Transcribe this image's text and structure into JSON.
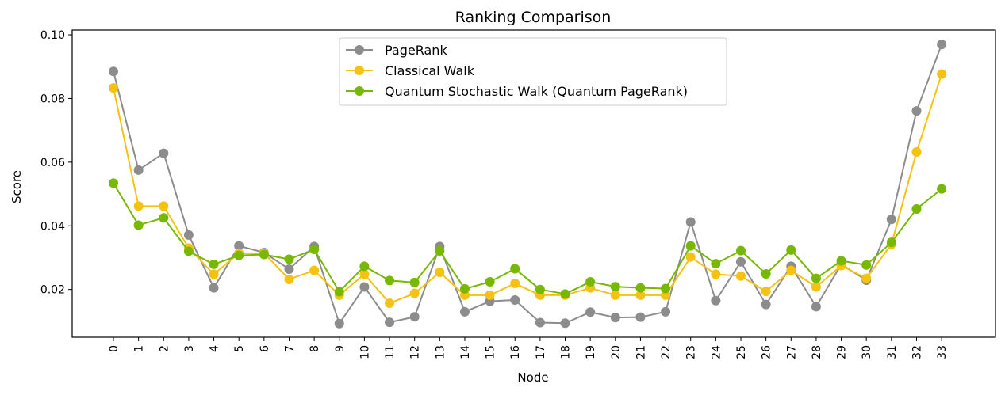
{
  "chart_data": {
    "type": "line",
    "title": "Ranking Comparison",
    "xlabel": "Node",
    "ylabel": "Score",
    "x": [
      0,
      1,
      2,
      3,
      4,
      5,
      6,
      7,
      8,
      9,
      10,
      11,
      12,
      13,
      14,
      15,
      16,
      17,
      18,
      19,
      20,
      21,
      22,
      23,
      24,
      25,
      26,
      27,
      28,
      29,
      30,
      31,
      32,
      33
    ],
    "ylim": [
      0.005,
      0.1015
    ],
    "yticks": [
      0.02,
      0.04,
      0.06,
      0.08,
      0.1
    ],
    "ytick_labels": [
      "0.02",
      "0.04",
      "0.06",
      "0.08",
      "0.10"
    ],
    "grid": false,
    "legend_position": "top-center",
    "series": [
      {
        "name": "PageRank",
        "color": "#8c8c8c",
        "values": [
          0.0885,
          0.0575,
          0.0628,
          0.0371,
          0.0205,
          0.0337,
          0.0316,
          0.0264,
          0.0335,
          0.0093,
          0.0208,
          0.0097,
          0.0114,
          0.0335,
          0.013,
          0.0163,
          0.0167,
          0.0096,
          0.0094,
          0.0129,
          0.0112,
          0.0113,
          0.013,
          0.0412,
          0.0165,
          0.0287,
          0.0153,
          0.0273,
          0.0146,
          0.0279,
          0.0229,
          0.042,
          0.0761,
          0.097
        ]
      },
      {
        "name": "Classical Walk",
        "color": "#f5c211",
        "values": [
          0.0833,
          0.0462,
          0.0462,
          0.033,
          0.0248,
          0.0314,
          0.0314,
          0.0232,
          0.026,
          0.0182,
          0.0248,
          0.0157,
          0.0188,
          0.0254,
          0.0182,
          0.0182,
          0.0219,
          0.0182,
          0.0182,
          0.0205,
          0.0182,
          0.0182,
          0.0182,
          0.0302,
          0.0248,
          0.0242,
          0.0194,
          0.026,
          0.0208,
          0.0275,
          0.0235,
          0.0342,
          0.0632,
          0.0877
        ]
      },
      {
        "name": "Quantum Stochastic Walk (Quantum PageRank)",
        "color": "#76b900",
        "values": [
          0.0534,
          0.0402,
          0.0425,
          0.032,
          0.0279,
          0.0307,
          0.031,
          0.0295,
          0.0326,
          0.0193,
          0.0273,
          0.0228,
          0.0222,
          0.0321,
          0.0202,
          0.0224,
          0.0265,
          0.02,
          0.0186,
          0.0224,
          0.0209,
          0.0205,
          0.0203,
          0.0337,
          0.0281,
          0.0322,
          0.0249,
          0.0324,
          0.0235,
          0.029,
          0.0277,
          0.0348,
          0.0453,
          0.0516
        ]
      }
    ]
  }
}
